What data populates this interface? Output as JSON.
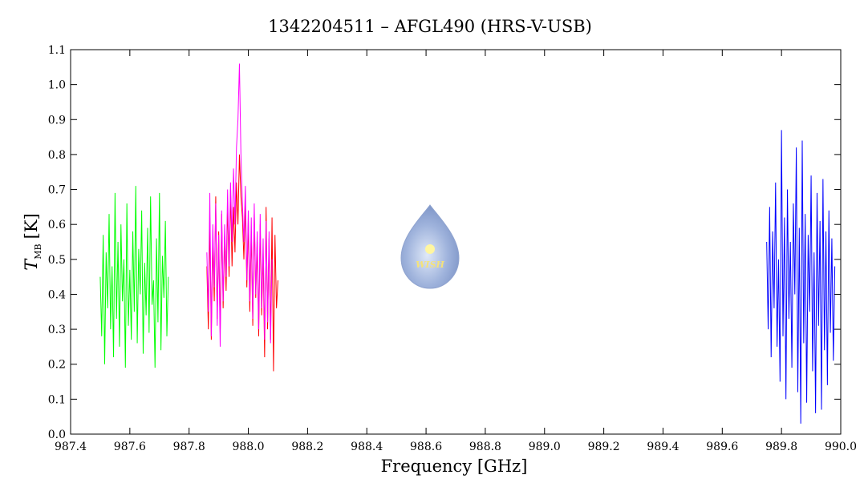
{
  "chart_data": {
    "type": "line",
    "title": "1342204511 – AFGL490 (HRS-V-USB)",
    "xlabel": "Frequency [GHz]",
    "ylabel": {
      "symbol": "T",
      "subscript": "MB",
      "unit": "[K]"
    },
    "logo_text": "WISH",
    "xlim": [
      987.4,
      990.0
    ],
    "ylim": [
      0,
      1.1
    ],
    "xticks": [
      987.4,
      987.6,
      987.8,
      {
        "value": 988,
        "label": "988.0"
      },
      988.2,
      988.4,
      988.6,
      988.8,
      {
        "value": 989,
        "label": "989.0"
      },
      989.2,
      989.4,
      989.6,
      989.8,
      {
        "value": 990,
        "label": "990.0"
      }
    ],
    "yticks": [
      {
        "value": 0,
        "label": "0.0"
      },
      0.1,
      0.2,
      0.3,
      0.4,
      0.5,
      0.6,
      0.7,
      0.8,
      0.9,
      {
        "value": 1,
        "label": "1.0"
      },
      1.1
    ],
    "series": [
      {
        "color": "#00ff00",
        "x": [
          987.5,
          987.505,
          987.51,
          987.515,
          987.52,
          987.525,
          987.53,
          987.535,
          987.54,
          987.545,
          987.55,
          987.555,
          987.56,
          987.565,
          987.57,
          987.575,
          987.58,
          987.585,
          987.59,
          987.595,
          987.6,
          987.605,
          987.61,
          987.615,
          987.62,
          987.625,
          987.63,
          987.635,
          987.64,
          987.645,
          987.65,
          987.655,
          987.66,
          987.665,
          987.67,
          987.675,
          987.68,
          987.685,
          987.69,
          987.695,
          987.7,
          987.705,
          987.71,
          987.715,
          987.72,
          987.725,
          987.73
        ],
        "values": [
          0.45,
          0.28,
          0.57,
          0.2,
          0.52,
          0.36,
          0.63,
          0.3,
          0.48,
          0.22,
          0.69,
          0.33,
          0.55,
          0.25,
          0.6,
          0.38,
          0.5,
          0.19,
          0.66,
          0.31,
          0.47,
          0.27,
          0.58,
          0.35,
          0.71,
          0.26,
          0.53,
          0.4,
          0.64,
          0.23,
          0.49,
          0.34,
          0.59,
          0.29,
          0.68,
          0.37,
          0.44,
          0.19,
          0.56,
          0.32,
          0.69,
          0.24,
          0.51,
          0.39,
          0.61,
          0.28,
          0.45
        ]
      },
      {
        "color": "#ff0000",
        "x": [
          987.86,
          987.865,
          987.87,
          987.875,
          987.88,
          987.885,
          987.89,
          987.895,
          987.9,
          987.905,
          987.91,
          987.915,
          987.92,
          987.925,
          987.93,
          987.935,
          987.94,
          987.945,
          987.95,
          987.955,
          987.96,
          987.965,
          987.97,
          987.975,
          987.98,
          987.985,
          987.99,
          987.995,
          988,
          988.005,
          988.01,
          988.015,
          988.02,
          988.025,
          988.03,
          988.035,
          988.04,
          988.045,
          988.05,
          988.055,
          988.06,
          988.065,
          988.07,
          988.075,
          988.08,
          988.085,
          988.09,
          988.095,
          988.1
        ],
        "values": [
          0.48,
          0.3,
          0.62,
          0.27,
          0.55,
          0.38,
          0.68,
          0.33,
          0.58,
          0.29,
          0.63,
          0.36,
          0.57,
          0.41,
          0.66,
          0.45,
          0.7,
          0.48,
          0.65,
          0.52,
          0.72,
          0.6,
          0.8,
          0.68,
          0.62,
          0.5,
          0.66,
          0.42,
          0.61,
          0.35,
          0.58,
          0.31,
          0.63,
          0.39,
          0.55,
          0.28,
          0.6,
          0.34,
          0.52,
          0.22,
          0.65,
          0.3,
          0.56,
          0.27,
          0.62,
          0.18,
          0.57,
          0.36,
          0.44
        ]
      },
      {
        "color": "#ff00ff",
        "x": [
          987.86,
          987.865,
          987.87,
          987.875,
          987.88,
          987.885,
          987.89,
          987.895,
          987.9,
          987.905,
          987.91,
          987.915,
          987.92,
          987.925,
          987.93,
          987.935,
          987.94,
          987.945,
          987.95,
          987.955,
          987.96,
          987.965,
          987.97,
          987.975,
          987.98,
          987.985,
          987.99,
          987.995,
          988,
          988.005,
          988.01,
          988.015,
          988.02,
          988.025,
          988.03,
          988.035,
          988.04,
          988.045,
          988.05,
          988.055,
          988.06,
          988.065,
          988.07,
          988.075,
          988.08
        ],
        "values": [
          0.52,
          0.35,
          0.69,
          0.28,
          0.6,
          0.42,
          0.66,
          0.31,
          0.57,
          0.25,
          0.64,
          0.38,
          0.6,
          0.45,
          0.7,
          0.48,
          0.72,
          0.55,
          0.76,
          0.6,
          0.82,
          0.9,
          1.06,
          0.8,
          0.66,
          0.55,
          0.71,
          0.44,
          0.64,
          0.38,
          0.62,
          0.33,
          0.66,
          0.4,
          0.58,
          0.3,
          0.63,
          0.36,
          0.56,
          0.27,
          0.61,
          0.32,
          0.58,
          0.26,
          0.5
        ]
      },
      {
        "color": "#0000ff",
        "x": [
          989.75,
          989.755,
          989.76,
          989.765,
          989.77,
          989.775,
          989.78,
          989.785,
          989.79,
          989.795,
          989.8,
          989.805,
          989.81,
          989.815,
          989.82,
          989.825,
          989.83,
          989.835,
          989.84,
          989.845,
          989.85,
          989.855,
          989.86,
          989.865,
          989.87,
          989.875,
          989.88,
          989.885,
          989.89,
          989.895,
          989.9,
          989.905,
          989.91,
          989.915,
          989.92,
          989.925,
          989.93,
          989.935,
          989.94,
          989.945,
          989.95,
          989.955,
          989.96,
          989.965,
          989.97,
          989.975,
          989.98
        ],
        "values": [
          0.55,
          0.3,
          0.65,
          0.22,
          0.58,
          0.36,
          0.72,
          0.25,
          0.5,
          0.15,
          0.87,
          0.28,
          0.62,
          0.1,
          0.7,
          0.33,
          0.55,
          0.19,
          0.66,
          0.4,
          0.82,
          0.12,
          0.59,
          0.03,
          0.84,
          0.26,
          0.63,
          0.09,
          0.57,
          0.35,
          0.74,
          0.18,
          0.52,
          0.06,
          0.69,
          0.31,
          0.61,
          0.07,
          0.73,
          0.24,
          0.58,
          0.14,
          0.64,
          0.29,
          0.56,
          0.21,
          0.48
        ]
      }
    ]
  }
}
